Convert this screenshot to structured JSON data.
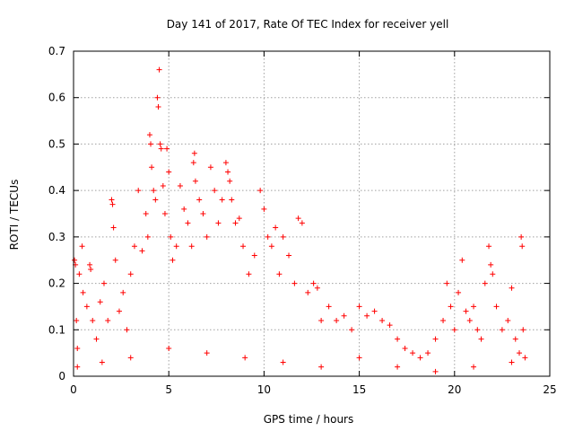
{
  "chart_data": {
    "type": "scatter",
    "title": "Day 141 of 2017, Rate Of TEC Index for receiver yell",
    "xlabel": "GPS time / hours",
    "ylabel": "ROTI / TECUs",
    "xlim": [
      0,
      25
    ],
    "ylim": [
      0,
      0.7
    ],
    "xticks": [
      0,
      5,
      10,
      15,
      20,
      25
    ],
    "xtick_labels": [
      "0",
      "5",
      "10",
      "15",
      "20",
      "25"
    ],
    "yticks": [
      0,
      0.1,
      0.2,
      0.3,
      0.4,
      0.5,
      0.6,
      0.7
    ],
    "ytick_labels": [
      "0",
      "0.1",
      "0.2",
      "0.3",
      "0.4",
      "0.5",
      "0.6",
      "0.7"
    ],
    "grid": true,
    "marker": "plus",
    "color": "#ff0000",
    "series": [
      {
        "name": "ROTI",
        "points": [
          [
            0.05,
            0.25
          ],
          [
            0.1,
            0.24
          ],
          [
            0.15,
            0.12
          ],
          [
            0.2,
            0.06
          ],
          [
            0.3,
            0.22
          ],
          [
            0.45,
            0.28
          ],
          [
            0.5,
            0.18
          ],
          [
            0.7,
            0.15
          ],
          [
            0.85,
            0.24
          ],
          [
            0.9,
            0.23
          ],
          [
            1.0,
            0.12
          ],
          [
            1.2,
            0.08
          ],
          [
            1.4,
            0.16
          ],
          [
            1.6,
            0.2
          ],
          [
            1.8,
            0.12
          ],
          [
            2.0,
            0.38
          ],
          [
            2.05,
            0.37
          ],
          [
            2.1,
            0.32
          ],
          [
            2.2,
            0.25
          ],
          [
            2.4,
            0.14
          ],
          [
            2.6,
            0.18
          ],
          [
            2.8,
            0.1
          ],
          [
            3.0,
            0.22
          ],
          [
            3.2,
            0.28
          ],
          [
            3.4,
            0.4
          ],
          [
            3.6,
            0.27
          ],
          [
            3.8,
            0.35
          ],
          [
            3.9,
            0.3
          ],
          [
            4.0,
            0.52
          ],
          [
            4.05,
            0.5
          ],
          [
            4.1,
            0.45
          ],
          [
            4.2,
            0.4
          ],
          [
            4.3,
            0.38
          ],
          [
            4.4,
            0.6
          ],
          [
            4.45,
            0.58
          ],
          [
            4.5,
            0.66
          ],
          [
            4.55,
            0.5
          ],
          [
            4.6,
            0.49
          ],
          [
            4.7,
            0.41
          ],
          [
            4.8,
            0.35
          ],
          [
            4.9,
            0.49
          ],
          [
            5.0,
            0.44
          ],
          [
            5.1,
            0.3
          ],
          [
            5.2,
            0.25
          ],
          [
            5.4,
            0.28
          ],
          [
            5.6,
            0.41
          ],
          [
            5.8,
            0.36
          ],
          [
            6.0,
            0.33
          ],
          [
            6.2,
            0.28
          ],
          [
            6.3,
            0.46
          ],
          [
            6.35,
            0.48
          ],
          [
            6.4,
            0.42
          ],
          [
            6.6,
            0.38
          ],
          [
            6.8,
            0.35
          ],
          [
            7.0,
            0.3
          ],
          [
            7.2,
            0.45
          ],
          [
            7.4,
            0.4
          ],
          [
            7.6,
            0.33
          ],
          [
            7.8,
            0.38
          ],
          [
            8.0,
            0.46
          ],
          [
            8.1,
            0.44
          ],
          [
            8.2,
            0.42
          ],
          [
            8.3,
            0.38
          ],
          [
            8.5,
            0.33
          ],
          [
            8.7,
            0.34
          ],
          [
            8.9,
            0.28
          ],
          [
            9.2,
            0.22
          ],
          [
            9.5,
            0.26
          ],
          [
            9.8,
            0.4
          ],
          [
            10.0,
            0.36
          ],
          [
            10.2,
            0.3
          ],
          [
            10.4,
            0.28
          ],
          [
            10.6,
            0.32
          ],
          [
            10.8,
            0.22
          ],
          [
            11.0,
            0.3
          ],
          [
            11.3,
            0.26
          ],
          [
            11.6,
            0.2
          ],
          [
            11.8,
            0.34
          ],
          [
            12.0,
            0.33
          ],
          [
            12.3,
            0.18
          ],
          [
            12.6,
            0.2
          ],
          [
            12.8,
            0.19
          ],
          [
            13.0,
            0.12
          ],
          [
            13.4,
            0.15
          ],
          [
            13.8,
            0.12
          ],
          [
            14.2,
            0.13
          ],
          [
            14.6,
            0.1
          ],
          [
            15.0,
            0.15
          ],
          [
            15.4,
            0.13
          ],
          [
            15.8,
            0.14
          ],
          [
            16.2,
            0.12
          ],
          [
            16.6,
            0.11
          ],
          [
            17.0,
            0.08
          ],
          [
            17.4,
            0.06
          ],
          [
            17.8,
            0.05
          ],
          [
            18.2,
            0.04
          ],
          [
            18.6,
            0.05
          ],
          [
            19.0,
            0.08
          ],
          [
            19.4,
            0.12
          ],
          [
            19.6,
            0.2
          ],
          [
            19.8,
            0.15
          ],
          [
            20.0,
            0.1
          ],
          [
            20.2,
            0.18
          ],
          [
            20.4,
            0.25
          ],
          [
            20.6,
            0.14
          ],
          [
            20.8,
            0.12
          ],
          [
            21.0,
            0.15
          ],
          [
            21.2,
            0.1
          ],
          [
            21.4,
            0.08
          ],
          [
            21.6,
            0.2
          ],
          [
            21.8,
            0.28
          ],
          [
            21.9,
            0.24
          ],
          [
            22.0,
            0.22
          ],
          [
            22.2,
            0.15
          ],
          [
            22.5,
            0.1
          ],
          [
            22.8,
            0.12
          ],
          [
            23.0,
            0.19
          ],
          [
            23.2,
            0.08
          ],
          [
            23.4,
            0.05
          ],
          [
            23.5,
            0.3
          ],
          [
            23.55,
            0.28
          ],
          [
            23.6,
            0.1
          ],
          [
            23.7,
            0.04
          ],
          [
            0.2,
            0.02
          ],
          [
            1.5,
            0.03
          ],
          [
            3.0,
            0.04
          ],
          [
            5.0,
            0.06
          ],
          [
            7.0,
            0.05
          ],
          [
            9.0,
            0.04
          ],
          [
            11.0,
            0.03
          ],
          [
            13.0,
            0.02
          ],
          [
            15.0,
            0.04
          ],
          [
            17.0,
            0.02
          ],
          [
            19.0,
            0.01
          ],
          [
            21.0,
            0.02
          ],
          [
            23.0,
            0.03
          ]
        ]
      }
    ]
  }
}
